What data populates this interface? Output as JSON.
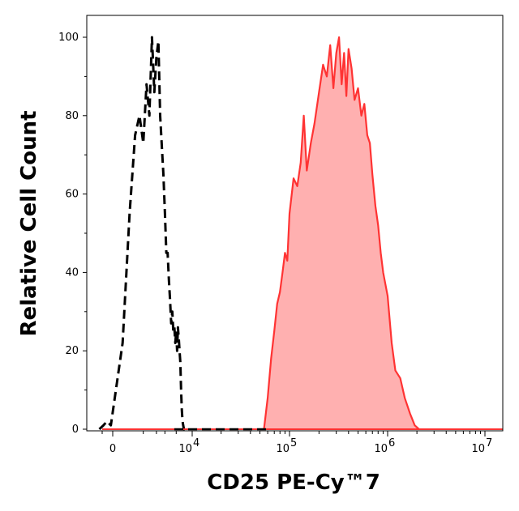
{
  "chart_data": {
    "type": "area",
    "title": "",
    "xlabel": "CD25 PE-Cy™7",
    "ylabel": "Relative Cell Count",
    "x_scale": "biexponential",
    "x_ticks": [
      {
        "value": 0,
        "label": "0"
      },
      {
        "value": 10000,
        "label": "10",
        "exp": "4"
      },
      {
        "value": 100000,
        "label": "10",
        "exp": "5"
      },
      {
        "value": 1000000,
        "label": "10",
        "exp": "6"
      },
      {
        "value": 10000000,
        "label": "10",
        "exp": "7"
      }
    ],
    "y_ticks": [
      0,
      20,
      40,
      60,
      80,
      100
    ],
    "ylim": [
      0,
      100
    ],
    "grid": false,
    "legend": "none",
    "series": [
      {
        "style": "dashed",
        "color": "#000000",
        "fill": "none",
        "x": [
          -1200,
          -800,
          -400,
          -100,
          200,
          400,
          600,
          800,
          1000,
          1200,
          1400,
          1600,
          1800,
          2000,
          2200,
          2400,
          2600,
          2800,
          3000,
          3200,
          3400,
          3600,
          3800,
          4000,
          4200,
          4400,
          4600,
          4800,
          5000,
          5200,
          5400,
          5600,
          5800,
          6000,
          6200,
          6400,
          6600,
          6800,
          7000,
          7200
        ],
        "values": [
          0,
          1,
          2,
          1,
          22,
          55,
          75,
          80,
          73,
          88,
          80,
          100,
          86,
          95,
          99,
          80,
          72,
          65,
          55,
          45,
          45,
          38,
          33,
          27,
          30,
          25,
          26,
          22,
          25,
          20,
          26,
          23,
          20,
          17,
          10,
          5,
          2,
          1,
          0,
          0
        ]
      },
      {
        "style": "solid",
        "color": "#ff3333",
        "fill": "#ffb0b0",
        "x": [
          55000,
          60000,
          65000,
          70000,
          75000,
          80000,
          85000,
          90000,
          95000,
          100000,
          110000,
          120000,
          130000,
          140000,
          150000,
          165000,
          180000,
          200000,
          220000,
          240000,
          260000,
          280000,
          300000,
          320000,
          340000,
          360000,
          380000,
          400000,
          430000,
          460000,
          500000,
          540000,
          580000,
          620000,
          660000,
          700000,
          750000,
          800000,
          850000,
          900000,
          1000000,
          1100000,
          1200000,
          1350000,
          1500000,
          1700000,
          1900000,
          2100000
        ],
        "values": [
          0,
          8,
          18,
          25,
          32,
          35,
          40,
          45,
          43,
          55,
          64,
          62,
          68,
          80,
          66,
          73,
          78,
          86,
          93,
          90,
          98,
          87,
          96,
          100,
          88,
          96,
          85,
          97,
          92,
          84,
          87,
          80,
          83,
          75,
          73,
          65,
          57,
          52,
          45,
          40,
          34,
          22,
          15,
          13,
          8,
          4,
          1,
          0
        ]
      }
    ]
  }
}
